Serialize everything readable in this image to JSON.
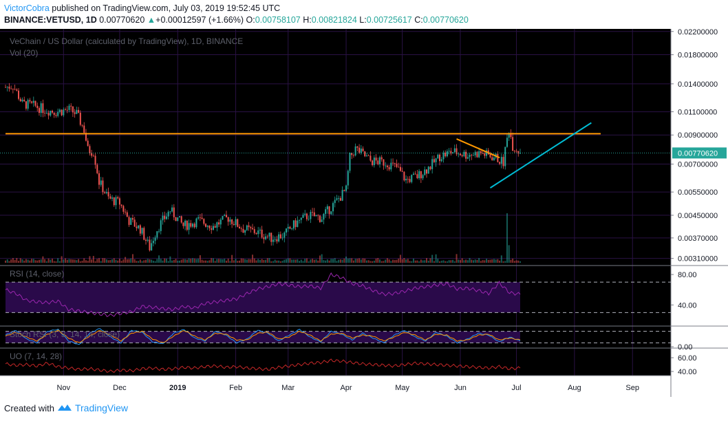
{
  "header": {
    "author": "VictorCobra",
    "published_text": " published on TradingView.com, July 03, 2019 19:52:45 UTC",
    "symbol": "BINANCE:VETUSD, 1D",
    "last": "0.00770620",
    "change": "+0.00012597 (+1.66%)",
    "o_label": "O:",
    "o": "0.00758107",
    "h_label": "H:",
    "h": "0.00821824",
    "l_label": "L:",
    "l": "0.00725617",
    "c_label": "C:",
    "c": "0.00770620"
  },
  "footer": {
    "created_with": "Created with",
    "brand": "TradingView"
  },
  "colors": {
    "background": "#000000",
    "up": "#26a69a",
    "down": "#ef5350",
    "resistance": "#ff9800",
    "trend": "#00bcd4",
    "rsi": "#9c27b0",
    "uo": "#c62828",
    "band": "#2a0a4a"
  },
  "chart_data": [
    {
      "type": "candlestick",
      "title": "VeChain / US Dollar (calculated by TradingView), 1D, BINANCE",
      "subtitle": "Vol (20)",
      "y_scale": "log",
      "ylim": [
        0.00295,
        0.0225
      ],
      "y_ticks": [
        "0.02200000",
        "0.01800000",
        "0.01400000",
        "0.01100000",
        "0.00900000",
        "0.00700000",
        "0.00550000",
        "0.00450000",
        "0.00370000",
        "0.00310000"
      ],
      "x_ticks": [
        "Nov",
        "Dec",
        "2019",
        "Feb",
        "Mar",
        "Apr",
        "May",
        "Jun",
        "Jul",
        "Aug",
        "Sep"
      ],
      "last_price_label": "0.00770620",
      "resistance_level": 0.0091,
      "price_path": [
        [
          "2018-10-01",
          0.0136
        ],
        [
          "2018-10-05",
          0.0138
        ],
        [
          "2018-10-10",
          0.0118
        ],
        [
          "2018-10-16",
          0.0116
        ],
        [
          "2018-10-22",
          0.0112
        ],
        [
          "2018-10-28",
          0.011
        ],
        [
          "2018-11-04",
          0.0112
        ],
        [
          "2018-11-08",
          0.0108
        ],
        [
          "2018-11-12",
          0.0094
        ],
        [
          "2018-11-14",
          0.0079
        ],
        [
          "2018-11-17",
          0.0078
        ],
        [
          "2018-11-20",
          0.006
        ],
        [
          "2018-11-25",
          0.0052
        ],
        [
          "2018-12-01",
          0.005
        ],
        [
          "2018-12-06",
          0.0043
        ],
        [
          "2018-12-12",
          0.004
        ],
        [
          "2018-12-17",
          0.0034
        ],
        [
          "2018-12-21",
          0.004
        ],
        [
          "2018-12-28",
          0.0047
        ],
        [
          "2019-01-04",
          0.0041
        ],
        [
          "2019-01-12",
          0.0043
        ],
        [
          "2019-01-20",
          0.0041
        ],
        [
          "2019-01-28",
          0.0044
        ],
        [
          "2019-02-05",
          0.004
        ],
        [
          "2019-02-12",
          0.0039
        ],
        [
          "2019-02-20",
          0.0037
        ],
        [
          "2019-02-27",
          0.0038
        ],
        [
          "2019-03-05",
          0.0042
        ],
        [
          "2019-03-12",
          0.0045
        ],
        [
          "2019-03-19",
          0.0044
        ],
        [
          "2019-03-26",
          0.005
        ],
        [
          "2019-04-01",
          0.0056
        ],
        [
          "2019-04-03",
          0.0074
        ],
        [
          "2019-04-06",
          0.008
        ],
        [
          "2019-04-14",
          0.0072
        ],
        [
          "2019-04-22",
          0.0071
        ],
        [
          "2019-04-28",
          0.0068
        ],
        [
          "2019-05-03",
          0.0061
        ],
        [
          "2019-05-09",
          0.0063
        ],
        [
          "2019-05-14",
          0.0067
        ],
        [
          "2019-05-17",
          0.007
        ],
        [
          "2019-05-21",
          0.0075
        ],
        [
          "2019-05-28",
          0.0078
        ],
        [
          "2019-06-04",
          0.0076
        ],
        [
          "2019-06-12",
          0.0077
        ],
        [
          "2019-06-20",
          0.0074
        ],
        [
          "2019-06-24",
          0.0071
        ],
        [
          "2019-06-27",
          0.0095
        ],
        [
          "2019-06-29",
          0.0082
        ],
        [
          "2019-07-01",
          0.008
        ],
        [
          "2019-07-03",
          0.0077
        ]
      ],
      "volume_spikes": [
        [
          "2019-06-26",
          0.9
        ],
        [
          "2019-06-27",
          0.32
        ]
      ],
      "trendlines": [
        {
          "color": "resistance",
          "from": [
            "2018-10-01",
            0.0091
          ],
          "to": [
            "2019-08-15",
            0.0091
          ]
        },
        {
          "color": "resistance",
          "from": [
            "2019-05-30",
            0.0087
          ],
          "to": [
            "2019-06-22",
            0.0074
          ]
        },
        {
          "color": "trend",
          "from": [
            "2019-06-17",
            0.0057
          ],
          "to": [
            "2019-08-10",
            0.01
          ]
        }
      ]
    },
    {
      "type": "line",
      "title": "RSI (14, close)",
      "ylim": [
        14,
        90
      ],
      "y_ticks": [
        "80.00",
        "40.00"
      ],
      "band": [
        30,
        70
      ],
      "series": [
        {
          "values": [
            60,
            55,
            46,
            44,
            43,
            45,
            34,
            32,
            30,
            28,
            26,
            29,
            31,
            38,
            37,
            35,
            34,
            38,
            36,
            42,
            44,
            46,
            48,
            55,
            61,
            64,
            68,
            66,
            64,
            65,
            62,
            80,
            76,
            68,
            65,
            59,
            54,
            55,
            58,
            62,
            64,
            66,
            68,
            61,
            62,
            59,
            55,
            69,
            56,
            54
          ]
        }
      ]
    },
    {
      "type": "line",
      "title": "Stoch RSI (3, 3, 14, 14, close)",
      "ylim": [
        0,
        100
      ],
      "y_ticks": [
        "0.00"
      ],
      "band": [
        20,
        80
      ],
      "series": [
        {
          "values": [
            60,
            85,
            40,
            20,
            80,
            90,
            30,
            10,
            70,
            95,
            50,
            20,
            85,
            75,
            25,
            15,
            70,
            90,
            45,
            30,
            80,
            60,
            20,
            40,
            85,
            70,
            30,
            60,
            90,
            50,
            25,
            80,
            65,
            35,
            70,
            45,
            20,
            60,
            85,
            50,
            30,
            75,
            55,
            20,
            40,
            70,
            60,
            25,
            50,
            30
          ]
        },
        {
          "values": [
            55,
            75,
            50,
            30,
            65,
            85,
            45,
            20,
            55,
            85,
            60,
            30,
            70,
            80,
            40,
            20,
            55,
            85,
            55,
            35,
            70,
            65,
            35,
            35,
            70,
            75,
            40,
            50,
            80,
            60,
            30,
            65,
            70,
            45,
            60,
            55,
            30,
            50,
            75,
            60,
            35,
            65,
            60,
            30,
            35,
            60,
            65,
            35,
            45,
            35
          ]
        }
      ]
    },
    {
      "type": "line",
      "title": "UO (7, 14, 28)",
      "ylim": [
        34,
        72
      ],
      "y_ticks": [
        "60.00",
        "40.00"
      ],
      "series": [
        {
          "values": [
            51,
            49,
            50,
            48,
            52,
            47,
            45,
            43,
            44,
            42,
            40,
            42,
            41,
            44,
            45,
            43,
            44,
            46,
            45,
            47,
            48,
            46,
            47,
            45,
            44,
            43,
            46,
            48,
            50,
            52,
            53,
            56,
            55,
            53,
            51,
            50,
            49,
            48,
            50,
            52,
            51,
            50,
            49,
            48,
            47,
            46,
            45,
            47,
            44,
            45
          ]
        }
      ]
    }
  ]
}
